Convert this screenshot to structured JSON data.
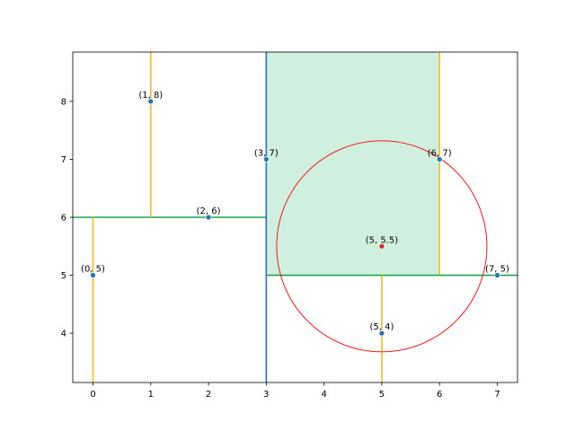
{
  "chart_data": {
    "type": "scatter",
    "title": "",
    "xlabel": "",
    "ylabel": "",
    "xlim": [
      -0.35,
      7.35
    ],
    "ylim": [
      3.15,
      8.85
    ],
    "xticks": [
      0,
      1,
      2,
      3,
      4,
      5,
      6,
      7
    ],
    "yticks": [
      4,
      5,
      6,
      7,
      8
    ],
    "grid": false,
    "points": [
      {
        "x": 0,
        "y": 5,
        "label": "(0, 5)"
      },
      {
        "x": 1,
        "y": 8,
        "label": "(1, 8)"
      },
      {
        "x": 2,
        "y": 6,
        "label": "(2, 6)"
      },
      {
        "x": 3,
        "y": 7,
        "label": "(3, 7)"
      },
      {
        "x": 5,
        "y": 4,
        "label": "(5, 4)"
      },
      {
        "x": 6,
        "y": 7,
        "label": "(6, 7)"
      },
      {
        "x": 7,
        "y": 5,
        "label": "(7, 5)"
      }
    ],
    "query_point": {
      "x": 5,
      "y": 5.5,
      "label": "(5, 5.5)",
      "color": "#d62728"
    },
    "search_circle": {
      "cx": 5,
      "cy": 5.5,
      "r": 1.82,
      "color": "#ff0000"
    },
    "highlight_region": {
      "x": [
        3,
        6
      ],
      "y": [
        5,
        8.85
      ],
      "color": "#d0f0df"
    },
    "splits": [
      {
        "orientation": "vertical",
        "x": 3,
        "y": [
          3.15,
          8.85
        ],
        "color": "#2f6fbf"
      },
      {
        "orientation": "horizontal",
        "y": 6,
        "x": [
          -0.35,
          3
        ],
        "color": "#1aa64a"
      },
      {
        "orientation": "horizontal",
        "y": 5,
        "x": [
          3,
          7.35
        ],
        "color": "#1aa64a"
      },
      {
        "orientation": "vertical",
        "x": 0,
        "y": [
          3.15,
          6
        ],
        "color": "#f2bd1d"
      },
      {
        "orientation": "vertical",
        "x": 1,
        "y": [
          6,
          8.85
        ],
        "color": "#f2bd1d"
      },
      {
        "orientation": "vertical",
        "x": 5,
        "y": [
          3.15,
          5
        ],
        "color": "#f2bd1d"
      },
      {
        "orientation": "vertical",
        "x": 6,
        "y": [
          5,
          8.85
        ],
        "color": "#f2bd1d"
      }
    ],
    "point_color": "#1f77b4"
  }
}
